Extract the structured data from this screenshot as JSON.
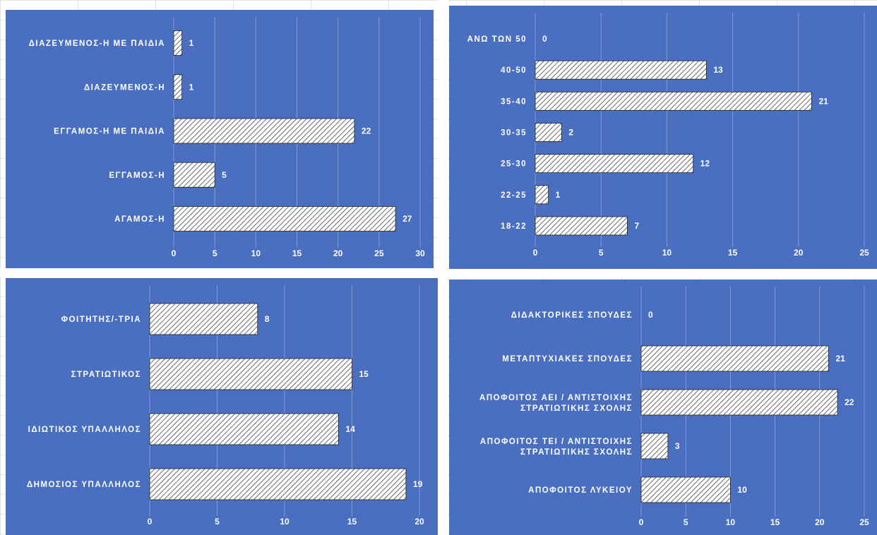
{
  "chart_data": [
    {
      "type": "bar",
      "orientation": "horizontal",
      "categories": [
        "ΔΙΑΖΕΥΜΕΝΟΣ-Η ΜΕ ΠΑΙΔΙΑ",
        "ΔΙΑΖΕΥΜΕΝΟΣ-Η",
        "ΕΓΓΑΜΟΣ-Η ΜΕ ΠΑΙΔΙΑ",
        "ΕΓΓΑΜΟΣ-Η",
        "ΑΓΑΜΟΣ-Η"
      ],
      "values": [
        1,
        1,
        22,
        5,
        27
      ],
      "xlim": [
        0,
        30
      ],
      "ticks": [
        0,
        5,
        10,
        15,
        20,
        25,
        30
      ],
      "grid": true
    },
    {
      "type": "bar",
      "orientation": "horizontal",
      "categories": [
        "ΑΝΩ ΤΩΝ 50",
        "40-50",
        "35-40",
        "30-35",
        "25-30",
        "22-25",
        "18-22"
      ],
      "values": [
        0,
        13,
        21,
        2,
        12,
        1,
        7
      ],
      "xlim": [
        0,
        25
      ],
      "ticks": [
        0,
        5,
        10,
        15,
        20,
        25
      ],
      "grid": true
    },
    {
      "type": "bar",
      "orientation": "horizontal",
      "categories": [
        "ΦΟΙΤΗΤΗΣ/-ΤΡΙΑ",
        "ΣΤΡΑΤΙΩΤΙΚΟΣ",
        "ΙΔΙΩΤΙΚΟΣ ΥΠΑΛΛΗΛΟΣ",
        "ΔΗΜΟΣΙΟΣ ΥΠΑΛΛΗΛΟΣ"
      ],
      "values": [
        8,
        15,
        14,
        19
      ],
      "xlim": [
        0,
        20
      ],
      "ticks": [
        0,
        5,
        10,
        15,
        20
      ],
      "grid": true
    },
    {
      "type": "bar",
      "orientation": "horizontal",
      "categories": [
        "ΔΙΔΑΚΤΟΡΙΚΕΣ ΣΠΟΥΔΕΣ",
        "ΜΕΤΑΠΤΥΧΙΑΚΕΣ ΣΠΟΥΔΕΣ",
        "ΑΠΟΦΟΙΤΟΣ ΑΕΙ / ΑΝΤΙΣΤΟΙΧΗΣ ΣΤΡΑΤΙΩΤΙΚΗΣ ΣΧΟΛΗΣ",
        "ΑΠΟΦΟΙΤΟΣ ΤΕΙ / ΑΝΤΙΣΤΟΙΧΗΣ ΣΤΡΑΤΙΩΤΙΚΗΣ ΣΧΟΛΗΣ",
        "ΑΠΟΦΟΙΤΟΣ ΛΥΚΕΙΟΥ"
      ],
      "values": [
        0,
        21,
        22,
        3,
        10
      ],
      "xlim": [
        0,
        25
      ],
      "ticks": [
        0,
        5,
        10,
        15,
        20,
        25
      ],
      "grid": true
    }
  ],
  "colors": {
    "background": "#4a6fc0",
    "gridline": "#7f9bd6",
    "text": "#ffffff",
    "bar_stroke": "#222222",
    "hatch": "#444444"
  }
}
